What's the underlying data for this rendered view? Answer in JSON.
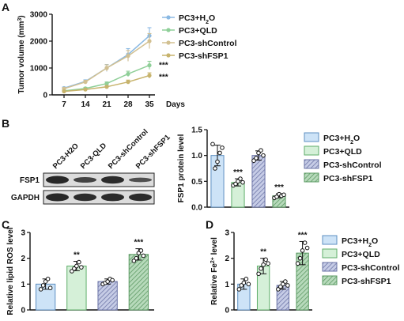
{
  "colors": {
    "h2o": "#8ab9e3",
    "qld": "#8fcf98",
    "shcontrol": "#8f98c4",
    "shfsp1": "#8fbf94",
    "line_control": "#d2c091",
    "line_shfsp1": "#c7b36c",
    "bar_h2o_fill": "#cde3f7",
    "bar_qld_fill": "#d5f0d8",
    "bar_hatch_bg": "#c6cce6",
    "bar_hatch2_bg": "#b7dabb"
  },
  "panelA": {
    "label": "A",
    "chart_data": {
      "type": "line",
      "ylabel_parts": [
        "Tumor volume (mm",
        "3",
        ")"
      ],
      "xlabel": "Days",
      "x": [
        7,
        14,
        21,
        28,
        35
      ],
      "x_ticks": [
        "7",
        "14",
        "21",
        "28",
        "35"
      ],
      "ylim": [
        0,
        3000
      ],
      "y_ticks": [
        "0",
        "1000",
        "2000",
        "3000"
      ],
      "series": [
        {
          "name_parts": [
            "PC3+H",
            "2",
            "O"
          ],
          "color": "#8ab9e3",
          "values": [
            250,
            500,
            1000,
            1500,
            2200
          ],
          "err": [
            40,
            60,
            130,
            220,
            300
          ]
        },
        {
          "name_parts": [
            "PC3+QLD"
          ],
          "color": "#8fcf98",
          "values": [
            150,
            240,
            420,
            780,
            1100
          ],
          "err": [
            30,
            40,
            60,
            100,
            150
          ]
        },
        {
          "name_parts": [
            "PC3-shControl"
          ],
          "color": "#d2c091",
          "values": [
            230,
            480,
            1000,
            1450,
            2000
          ],
          "err": [
            40,
            60,
            120,
            200,
            280
          ]
        },
        {
          "name_parts": [
            "PC3-shFSP1"
          ],
          "color": "#c7b36c",
          "values": [
            130,
            200,
            300,
            480,
            720
          ],
          "err": [
            25,
            30,
            50,
            70,
            100
          ]
        }
      ],
      "annotations": [
        "***",
        "***"
      ]
    }
  },
  "panelB": {
    "label": "B",
    "lanes": [
      "PC3-H2O",
      "PC3-QLD",
      "PC3-shControl",
      "PC3-shFSP1"
    ],
    "rows": [
      "FSP1",
      "GAPDH"
    ],
    "chart_data": {
      "type": "bar",
      "ylabel": "FSP1 protein level",
      "categories": [
        "PC3+H2O",
        "PC3+QLD",
        "PC3-shControl",
        "PC3-shFSP1"
      ],
      "values": [
        1.0,
        0.48,
        1.0,
        0.22
      ],
      "err": [
        0.2,
        0.07,
        0.09,
        0.04
      ],
      "points": [
        [
          1.22,
          0.75,
          0.88,
          1.05,
          1.15
        ],
        [
          0.42,
          0.45,
          0.5,
          0.55,
          0.48
        ],
        [
          0.9,
          0.95,
          1.05,
          1.1,
          1.0
        ],
        [
          0.18,
          0.2,
          0.25,
          0.22,
          0.24
        ]
      ],
      "ylim": [
        0,
        1.5
      ],
      "y_ticks": [
        "0.0",
        "0.5",
        "1.0",
        "1.5"
      ],
      "annotations": [
        "",
        "***",
        "",
        "***"
      ]
    },
    "legend": [
      [
        "PC3+H",
        "2",
        "O"
      ],
      [
        "PC3+QLD"
      ],
      [
        "PC3-shControl"
      ],
      [
        "PC3-shFSP1"
      ]
    ]
  },
  "panelC": {
    "label": "C",
    "chart_data": {
      "type": "bar",
      "ylabel": "Relative lipid ROS level",
      "categories": [
        "PC3+H2O",
        "PC3+QLD",
        "PC3-shControl",
        "PC3-shFSP1"
      ],
      "values": [
        1.0,
        1.7,
        1.1,
        2.15
      ],
      "err": [
        0.2,
        0.18,
        0.1,
        0.22
      ],
      "points": [
        [
          0.8,
          0.95,
          1.1,
          1.2,
          0.85
        ],
        [
          1.5,
          1.6,
          1.7,
          1.85,
          1.65
        ],
        [
          1.0,
          1.05,
          1.1,
          1.2,
          1.15
        ],
        [
          1.9,
          2.0,
          2.2,
          2.3,
          2.1
        ]
      ],
      "ylim": [
        0,
        3
      ],
      "y_ticks": [
        "0",
        "1",
        "2",
        "3"
      ],
      "annotations": [
        "",
        "**",
        "",
        "***"
      ]
    }
  },
  "panelD": {
    "label": "D",
    "chart_data": {
      "type": "bar",
      "ylabel_parts": [
        "Relative Fe",
        "2+",
        " level"
      ],
      "categories": [
        "PC3+H2O",
        "PC3+QLD",
        "PC3-shControl",
        "PC3-shFSP1"
      ],
      "values": [
        1.0,
        1.7,
        0.95,
        2.2
      ],
      "err": [
        0.2,
        0.3,
        0.15,
        0.45
      ],
      "points": [
        [
          0.8,
          0.95,
          1.05,
          1.2,
          1.0
        ],
        [
          1.4,
          1.6,
          1.75,
          1.95,
          1.8
        ],
        [
          0.8,
          0.9,
          1.0,
          1.1,
          0.95
        ],
        [
          1.8,
          2.0,
          2.3,
          2.6,
          2.4
        ]
      ],
      "ylim": [
        0,
        3
      ],
      "y_ticks": [
        "0",
        "1",
        "2",
        "3"
      ],
      "annotations": [
        "",
        "**",
        "",
        "***"
      ]
    },
    "legend": [
      [
        "PC3+H",
        "2",
        "O"
      ],
      [
        "PC3+QLD"
      ],
      [
        "PC3-shControl"
      ],
      [
        "PC3-shFSP1"
      ]
    ]
  }
}
